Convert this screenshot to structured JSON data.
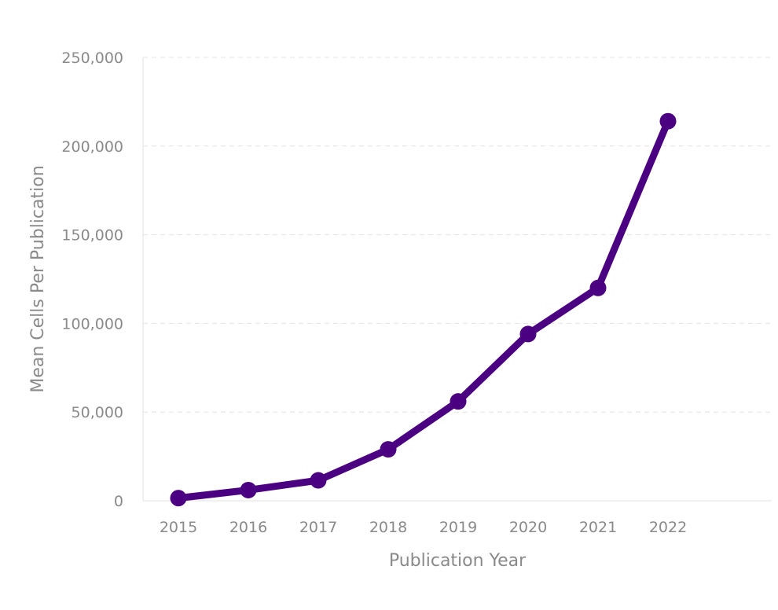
{
  "chart_data": {
    "type": "line",
    "xlabel": "Publication Year",
    "ylabel": "Mean Cells Per Publication",
    "categories": [
      "2015",
      "2016",
      "2017",
      "2018",
      "2019",
      "2020",
      "2021",
      "2022"
    ],
    "series": [
      {
        "values": [
          1500,
          6000,
          11500,
          29000,
          56000,
          94000,
          120000,
          214000
        ],
        "color": "#4b0082"
      }
    ],
    "ylim": [
      0,
      250000
    ],
    "yticks": [
      0,
      50000,
      100000,
      150000,
      200000,
      250000
    ],
    "ytick_labels": [
      "0",
      "50,000",
      "100,000",
      "150,000",
      "200,000",
      "250,000"
    ],
    "grid": true,
    "legend": "none"
  }
}
